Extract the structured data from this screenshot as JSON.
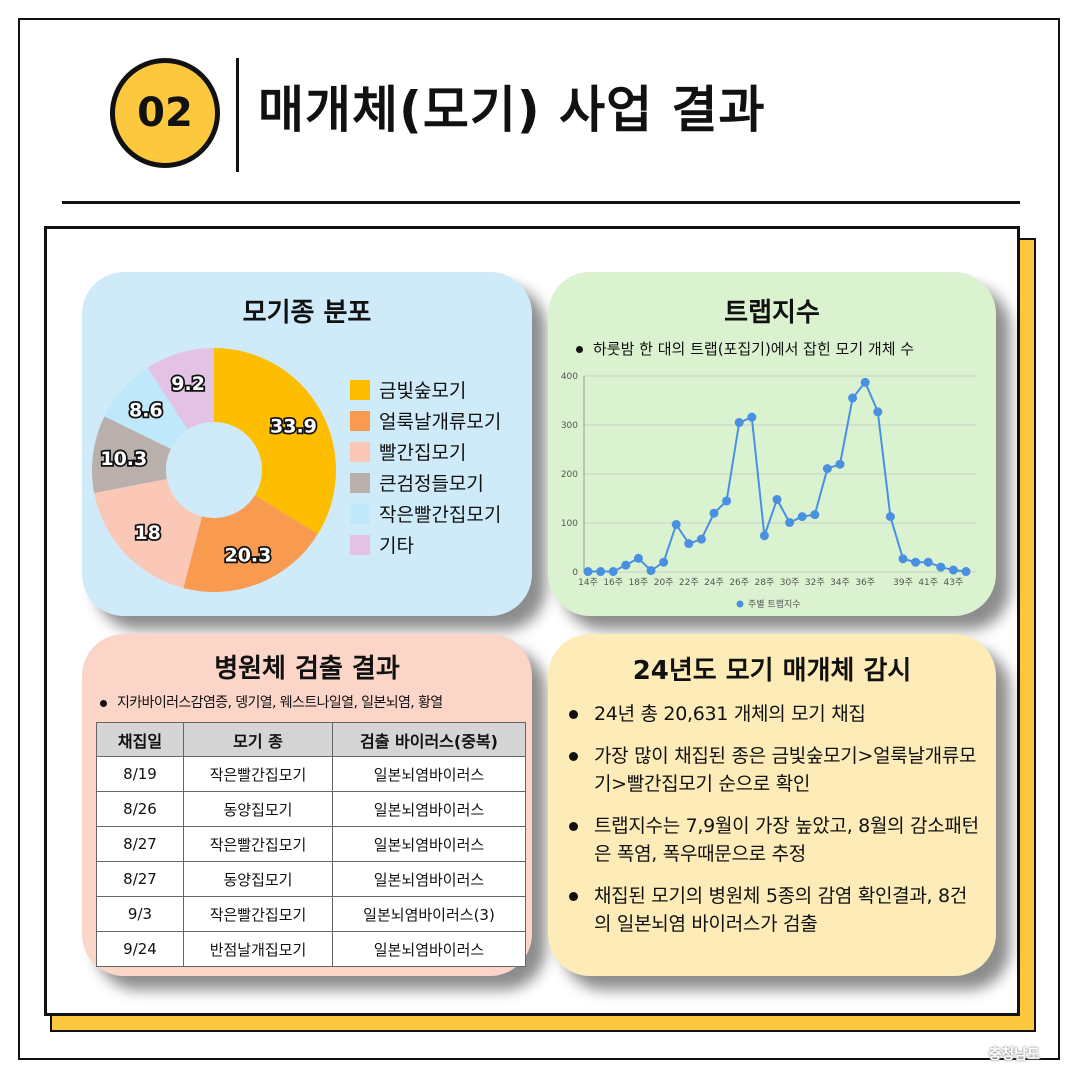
{
  "header": {
    "number": "02",
    "title": "매개체(모기) 사업 결과"
  },
  "species_card": {
    "title": "모기종 분포",
    "legend": [
      "금빛숲모기",
      "얼룩날개류모기",
      "빨간집모기",
      "큰검정들모기",
      "작은빨간집모기",
      "기타"
    ],
    "colors": [
      "#FDBE00",
      "#F89B50",
      "#FBC8B8",
      "#B9B0AB",
      "#BFE8FA",
      "#E3C2E6"
    ]
  },
  "trap_card": {
    "title": "트랩지수",
    "note": "하룻밤 한 대의 트랩(포집기)에서 잡힌 모기 개체 수",
    "legend": "주별 트랩지수",
    "line_color": "#4A90E2"
  },
  "pathogen_card": {
    "title": "병원체 검출 결과",
    "note": "지카바이러스감염증, 뎅기열, 웨스트나일열, 일본뇌염, 황열",
    "headers": [
      "채집일",
      "모기 종",
      "검출 바이러스(중복)"
    ],
    "rows": [
      [
        "8/19",
        "작은빨간집모기",
        "일본뇌염바이러스"
      ],
      [
        "8/26",
        "동양집모기",
        "일본뇌염바이러스"
      ],
      [
        "8/27",
        "작은빨간집모기",
        "일본뇌염바이러스"
      ],
      [
        "8/27",
        "동양집모기",
        "일본뇌염바이러스"
      ],
      [
        "9/3",
        "작은빨간집모기",
        "일본뇌염바이러스(3)"
      ],
      [
        "9/24",
        "반점날개집모기",
        "일본뇌염바이러스"
      ]
    ]
  },
  "summary_card": {
    "title": "24년도 모기 매개체 감시",
    "bullets": [
      "24년 총 20,631 개체의 모기 채집",
      "가장 많이 채집된 종은 금빛숲모기>얼룩날개류모기>빨간집모기 순으로 확인",
      "트랩지수는  7,9월이 가장 높았고, 8월의 감소패턴은 폭염, 폭우때문으로 추정",
      "채집된 모기의 병원체 5종의 감염 확인결과, 8건의 일본뇌염 바이러스가 검출"
    ]
  },
  "watermark": "충청남도",
  "chart_data": [
    {
      "type": "pie",
      "title": "모기종 분포",
      "categories": [
        "금빛숲모기",
        "얼룩날개류모기",
        "빨간집모기",
        "큰검정들모기",
        "작은빨간집모기",
        "기타"
      ],
      "values": [
        33.9,
        20.3,
        18,
        10.3,
        8.6,
        9.2
      ],
      "legend": "right"
    },
    {
      "type": "line",
      "title": "트랩지수",
      "x": [
        "14주",
        "15주",
        "16주",
        "17주",
        "18주",
        "19주",
        "20주",
        "21주",
        "22주",
        "23주",
        "24주",
        "25주",
        "26주",
        "27주",
        "28주",
        "29주",
        "30주",
        "31주",
        "32주",
        "33주",
        "34주",
        "35주",
        "36주",
        "37주",
        "38주",
        "39주",
        "40주",
        "41주",
        "42주",
        "43주",
        "44주"
      ],
      "x_tick_labels": [
        "14주",
        "16주",
        "18주",
        "20주",
        "22주",
        "24주",
        "26주",
        "28주",
        "30주",
        "32주",
        "34주",
        "36주",
        "39주",
        "41주",
        "43주"
      ],
      "series": [
        {
          "name": "주별 트랩지수",
          "values": [
            1,
            1,
            1,
            14,
            28,
            3,
            20,
            97,
            58,
            67,
            120,
            145,
            305,
            316,
            74,
            148,
            101,
            113,
            117,
            211,
            220,
            355,
            387,
            327,
            113,
            27,
            20,
            20,
            10,
            4,
            1
          ]
        }
      ],
      "ylim": [
        0,
        400
      ],
      "yticks": [
        0,
        100,
        200,
        300,
        400
      ],
      "grid": true,
      "legend": "bottom"
    }
  ]
}
